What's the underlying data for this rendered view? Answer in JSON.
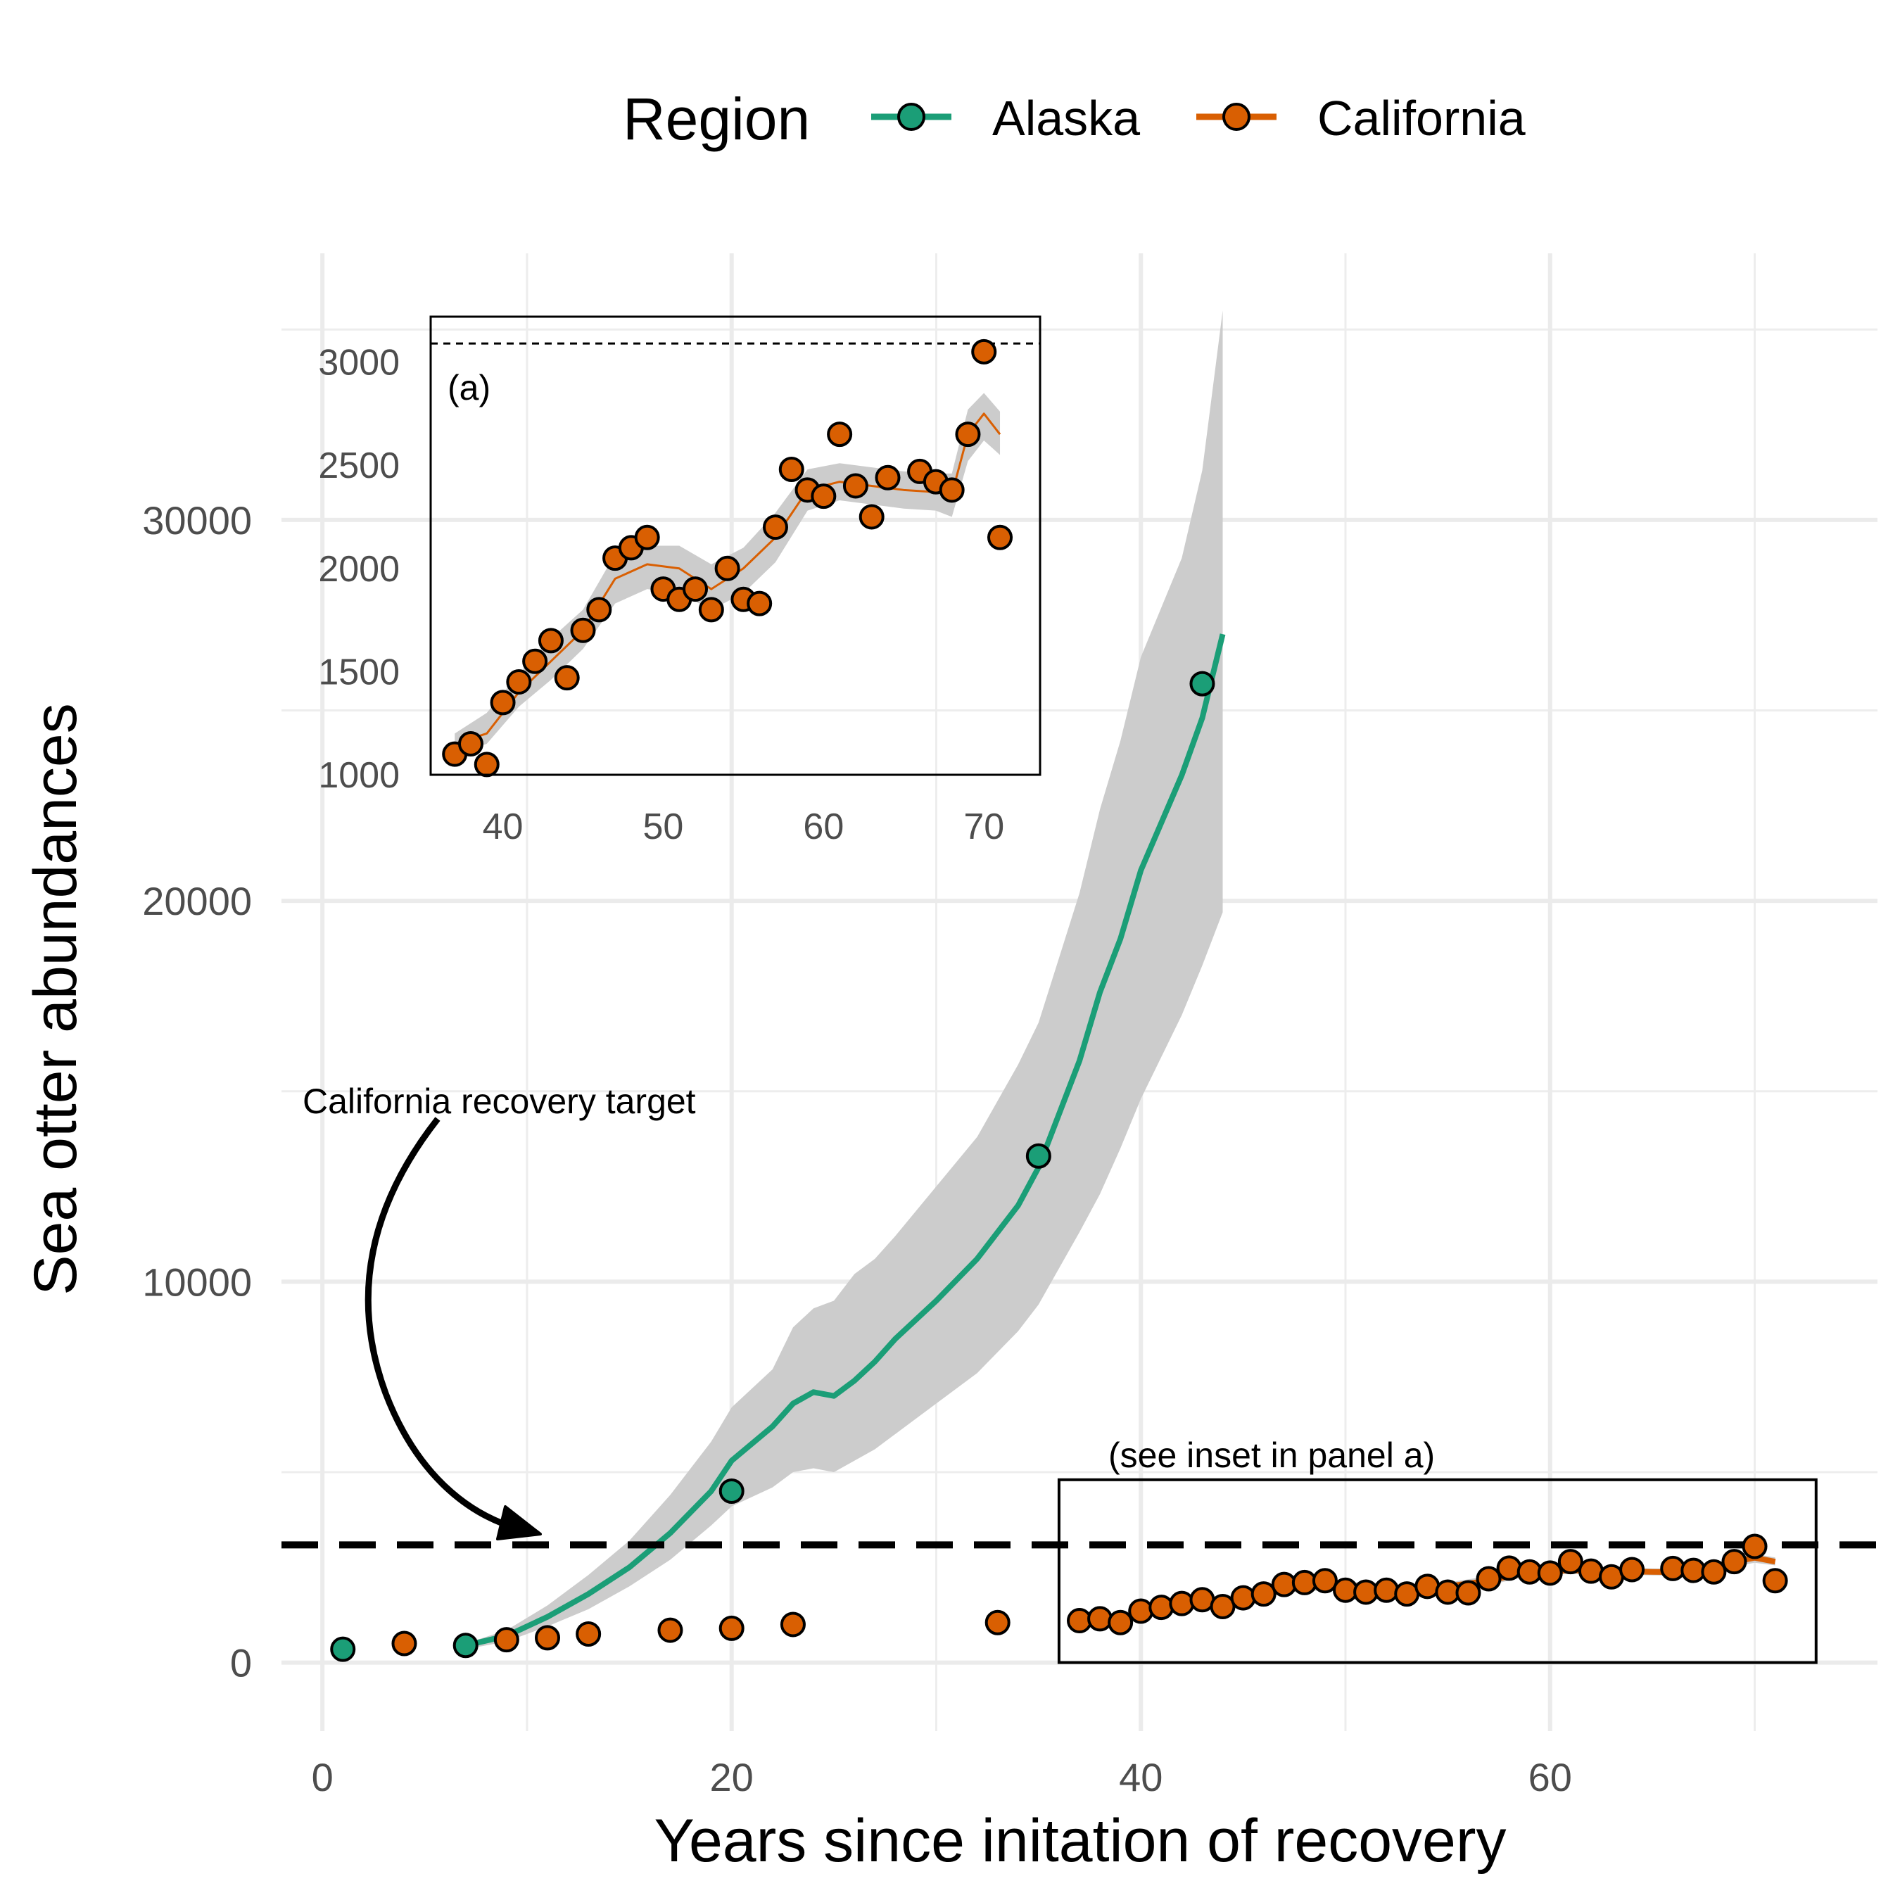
{
  "chart_data": {
    "type": "line",
    "xlabel": "Years since initation of recovery",
    "ylabel": "Sea otter abundances",
    "xlim": [
      -2,
      76
    ],
    "ylim": [
      -1800,
      37000
    ],
    "xticks": [
      0,
      20,
      40,
      60
    ],
    "yticks": [
      0,
      10000,
      20000,
      30000
    ],
    "grid": true,
    "legend": {
      "title": "Region",
      "position": "top",
      "entries": [
        {
          "label": "Alaska",
          "color": "#1B9E77"
        },
        {
          "label": "California",
          "color": "#D95F02"
        }
      ]
    },
    "reference_line": {
      "y": 3090,
      "style": "dashed",
      "color": "#000000"
    },
    "annotations": {
      "target_label": "California recovery target",
      "inset_note": "(see inset in panel a)",
      "inset_box": {
        "x": [
          36,
          73
        ],
        "y": [
          0,
          4800
        ]
      }
    },
    "series": [
      {
        "name": "Alaska",
        "color": "#1B9E77",
        "points": {
          "x": [
            1,
            7,
            20,
            35,
            43
          ],
          "y": [
            350,
            450,
            4500,
            13300,
            25700
          ]
        },
        "fit": {
          "x": [
            7,
            9,
            11,
            13,
            15,
            17,
            19,
            20,
            22,
            23,
            24,
            25,
            26,
            27,
            28,
            30,
            32,
            34,
            35,
            37,
            38,
            39,
            40,
            42,
            43,
            44
          ],
          "y": [
            450,
            700,
            1200,
            1800,
            2500,
            3400,
            4500,
            5300,
            6200,
            6800,
            7100,
            7000,
            7400,
            7900,
            8500,
            9500,
            10600,
            12000,
            13000,
            15800,
            17600,
            19000,
            20800,
            23300,
            24800,
            27000
          ]
        },
        "ci_lower": [
          350,
          550,
          950,
          1400,
          2000,
          2700,
          3600,
          4100,
          4600,
          5000,
          5100,
          5000,
          5300,
          5600,
          6000,
          6800,
          7600,
          8700,
          9400,
          11300,
          12300,
          13500,
          14800,
          17000,
          18300,
          19700
        ],
        "ci_upper": [
          500,
          850,
          1500,
          2300,
          3200,
          4400,
          5800,
          6700,
          7700,
          8800,
          9300,
          9500,
          10200,
          10600,
          11200,
          12500,
          13800,
          15700,
          16800,
          20200,
          22400,
          24200,
          26400,
          29000,
          31300,
          35500
        ]
      },
      {
        "name": "California",
        "color": "#D95F02",
        "points": {
          "x": [
            4,
            9,
            11,
            13,
            17,
            20,
            23,
            33,
            37,
            38,
            39,
            40,
            41,
            42,
            43,
            44,
            45,
            46,
            47,
            48,
            49,
            50,
            51,
            52,
            53,
            54,
            55,
            56,
            57,
            58,
            59,
            60,
            61,
            62,
            63,
            64,
            66,
            67,
            68,
            69,
            70,
            71
          ],
          "y": [
            500,
            600,
            650,
            750,
            850,
            900,
            1000,
            1050,
            1100,
            1150,
            1050,
            1350,
            1450,
            1550,
            1650,
            1470,
            1700,
            1800,
            2050,
            2100,
            2150,
            1900,
            1850,
            1900,
            1800,
            2000,
            1850,
            1830,
            2200,
            2480,
            2380,
            2350,
            2650,
            2400,
            2250,
            2440,
            2470,
            2420,
            2380,
            2650,
            3050,
            2150
          ]
        },
        "fit": {
          "x": [
            37,
            39,
            41,
            43,
            45,
            47,
            49,
            51,
            53,
            55,
            57,
            59,
            61,
            63,
            65,
            67,
            68,
            69,
            70,
            71
          ],
          "y": [
            1150,
            1200,
            1400,
            1550,
            1700,
            1950,
            2020,
            2000,
            1900,
            2000,
            2150,
            2380,
            2420,
            2400,
            2380,
            2370,
            2360,
            2650,
            2750,
            2650
          ]
        },
        "ci_lower": [
          1100,
          1150,
          1330,
          1460,
          1610,
          1830,
          1900,
          1880,
          1800,
          1880,
          2030,
          2280,
          2330,
          2310,
          2290,
          2280,
          2250,
          2520,
          2620,
          2550
        ],
        "ci_upper": [
          1200,
          1300,
          1490,
          1660,
          1800,
          2070,
          2110,
          2110,
          2020,
          2100,
          2270,
          2480,
          2510,
          2490,
          2470,
          2460,
          2460,
          2770,
          2850,
          2760
        ]
      }
    ],
    "inset": {
      "tag": "(a)",
      "xlim": [
        35.5,
        73.5
      ],
      "ylim": [
        1000,
        3220
      ],
      "xticks": [
        40,
        50,
        60,
        70
      ],
      "yticks": [
        1000,
        1500,
        2000,
        2500,
        3000
      ],
      "reference_line": {
        "y": 3090,
        "style": "dotted",
        "color": "#000000"
      },
      "series": "California"
    }
  }
}
